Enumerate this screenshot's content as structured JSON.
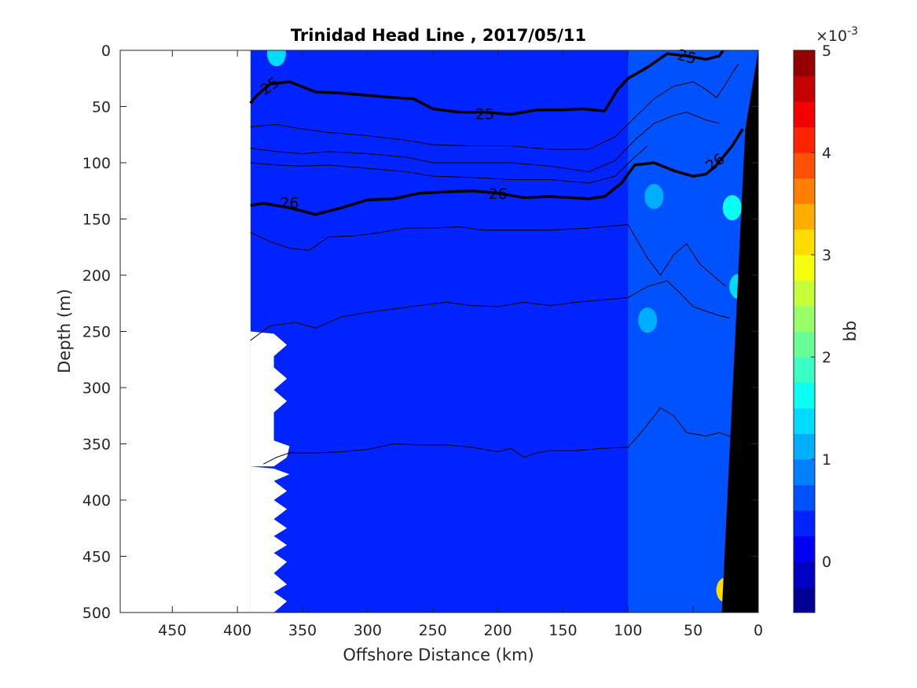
{
  "chart_data": {
    "type": "heatmap",
    "title": "Trinidad Head Line , 2017/05/11",
    "xlabel": "Offshore Distance (km)",
    "ylabel": "Depth (m)",
    "xlim": [
      490,
      0
    ],
    "ylim": [
      0,
      500
    ],
    "x_reversed": true,
    "y_reversed": true,
    "xticks": [
      450,
      400,
      350,
      300,
      250,
      200,
      150,
      100,
      50,
      0
    ],
    "yticks": [
      0,
      50,
      100,
      150,
      200,
      250,
      300,
      350,
      400,
      450,
      500
    ],
    "colorbar": {
      "label": "bb",
      "exponent_label": "×10",
      "exponent_power": "-3",
      "min": -0.5,
      "max": 5,
      "ticks": [
        0,
        1,
        2,
        3,
        4,
        5
      ],
      "colormap": "jet"
    },
    "field": {
      "background_value": 0.3,
      "nearshore_value": 0.7,
      "nearshore_x_start": 100,
      "features": [
        {
          "x": 370,
          "y": 3,
          "value": 1.4
        },
        {
          "x": 20,
          "y": 140,
          "value": 1.6
        },
        {
          "x": 15,
          "y": 210,
          "value": 1.3
        },
        {
          "x": 25,
          "y": 480,
          "value": 3.0
        },
        {
          "x": 80,
          "y": 130,
          "value": 1.0
        },
        {
          "x": 85,
          "y": 240,
          "value": 1.0
        }
      ]
    },
    "data_extent": {
      "x_max": 390,
      "bottom_depth_at_x_max": 250
    },
    "bathymetry": [
      {
        "x": 0,
        "depth": 0
      },
      {
        "x": 10,
        "depth": 70
      },
      {
        "x": 28,
        "depth": 500
      }
    ],
    "contours": [
      {
        "level": 25,
        "emphasized": true,
        "points": [
          [
            390,
            47
          ],
          [
            385,
            40
          ],
          [
            375,
            30
          ],
          [
            360,
            28
          ],
          [
            340,
            37
          ],
          [
            320,
            38
          ],
          [
            300,
            40
          ],
          [
            280,
            42
          ],
          [
            265,
            43
          ],
          [
            250,
            52
          ],
          [
            230,
            55
          ],
          [
            210,
            55
          ],
          [
            190,
            57
          ],
          [
            170,
            53
          ],
          [
            150,
            53
          ],
          [
            135,
            52
          ],
          [
            118,
            54
          ],
          [
            108,
            35
          ],
          [
            100,
            25
          ],
          [
            85,
            15
          ],
          [
            70,
            3
          ],
          [
            55,
            5
          ],
          [
            40,
            8
          ],
          [
            30,
            5
          ],
          [
            27,
            0
          ]
        ]
      },
      {
        "level": 26,
        "emphasized": true,
        "points": [
          [
            390,
            138
          ],
          [
            380,
            136
          ],
          [
            360,
            140
          ],
          [
            340,
            146
          ],
          [
            320,
            140
          ],
          [
            300,
            133
          ],
          [
            280,
            132
          ],
          [
            260,
            127
          ],
          [
            240,
            126
          ],
          [
            220,
            125
          ],
          [
            200,
            127
          ],
          [
            180,
            131
          ],
          [
            160,
            130
          ],
          [
            130,
            132
          ],
          [
            118,
            130
          ],
          [
            105,
            118
          ],
          [
            95,
            102
          ],
          [
            80,
            100
          ],
          [
            65,
            107
          ],
          [
            50,
            112
          ],
          [
            40,
            110
          ],
          [
            32,
            102
          ],
          [
            20,
            85
          ],
          [
            12,
            70
          ]
        ]
      },
      {
        "level": 25.2,
        "emphasized": false,
        "points": [
          [
            390,
            68
          ],
          [
            370,
            66
          ],
          [
            350,
            70
          ],
          [
            330,
            73
          ],
          [
            300,
            76
          ],
          [
            270,
            80
          ],
          [
            250,
            84
          ],
          [
            220,
            85
          ],
          [
            190,
            85
          ],
          [
            160,
            88
          ],
          [
            130,
            88
          ],
          [
            110,
            77
          ],
          [
            95,
            60
          ],
          [
            80,
            43
          ],
          [
            65,
            32
          ],
          [
            50,
            28
          ],
          [
            40,
            35
          ],
          [
            32,
            42
          ],
          [
            25,
            30
          ],
          [
            20,
            20
          ],
          [
            15,
            12
          ]
        ]
      },
      {
        "level": 25.4,
        "emphasized": false,
        "points": [
          [
            390,
            87
          ],
          [
            370,
            90
          ],
          [
            350,
            92
          ],
          [
            330,
            90
          ],
          [
            300,
            92
          ],
          [
            270,
            95
          ],
          [
            250,
            100
          ],
          [
            220,
            100
          ],
          [
            190,
            100
          ],
          [
            160,
            103
          ],
          [
            130,
            108
          ],
          [
            110,
            98
          ],
          [
            95,
            80
          ],
          [
            80,
            65
          ],
          [
            65,
            58
          ],
          [
            55,
            55
          ],
          [
            40,
            62
          ],
          [
            30,
            65
          ]
        ]
      },
      {
        "level": 25.6,
        "emphasized": false,
        "points": [
          [
            390,
            100
          ],
          [
            370,
            102
          ],
          [
            350,
            103
          ],
          [
            330,
            102
          ],
          [
            300,
            105
          ],
          [
            270,
            108
          ],
          [
            250,
            112
          ],
          [
            220,
            113
          ],
          [
            190,
            115
          ],
          [
            160,
            115
          ],
          [
            130,
            118
          ],
          [
            110,
            112
          ],
          [
            95,
            95
          ],
          [
            85,
            85
          ]
        ]
      },
      {
        "level": 26.2,
        "emphasized": false,
        "points": [
          [
            390,
            162
          ],
          [
            375,
            170
          ],
          [
            360,
            176
          ],
          [
            345,
            178
          ],
          [
            330,
            166
          ],
          [
            310,
            165
          ],
          [
            290,
            162
          ],
          [
            270,
            158
          ],
          [
            250,
            158
          ],
          [
            230,
            157
          ],
          [
            210,
            160
          ],
          [
            190,
            160
          ],
          [
            160,
            160
          ],
          [
            130,
            158
          ],
          [
            100,
            155
          ],
          [
            85,
            185
          ],
          [
            75,
            200
          ],
          [
            65,
            182
          ],
          [
            55,
            172
          ],
          [
            45,
            190
          ],
          [
            35,
            200
          ],
          [
            25,
            210
          ]
        ]
      },
      {
        "level": 26.4,
        "emphasized": false,
        "points": [
          [
            390,
            258
          ],
          [
            375,
            245
          ],
          [
            355,
            242
          ],
          [
            340,
            247
          ],
          [
            320,
            237
          ],
          [
            300,
            233
          ],
          [
            280,
            230
          ],
          [
            260,
            227
          ],
          [
            240,
            224
          ],
          [
            220,
            227
          ],
          [
            200,
            228
          ],
          [
            180,
            224
          ],
          [
            160,
            227
          ],
          [
            140,
            224
          ],
          [
            120,
            222
          ],
          [
            100,
            220
          ],
          [
            85,
            210
          ],
          [
            70,
            205
          ],
          [
            60,
            216
          ],
          [
            50,
            228
          ],
          [
            40,
            232
          ],
          [
            30,
            236
          ],
          [
            22,
            238
          ]
        ]
      },
      {
        "level": 26.6,
        "emphasized": false,
        "points": [
          [
            380,
            368
          ],
          [
            370,
            362
          ],
          [
            360,
            358
          ],
          [
            340,
            358
          ],
          [
            320,
            357
          ],
          [
            300,
            355
          ],
          [
            280,
            350
          ],
          [
            260,
            351
          ],
          [
            240,
            351
          ],
          [
            220,
            353
          ],
          [
            200,
            357
          ],
          [
            190,
            354
          ],
          [
            180,
            362
          ],
          [
            170,
            358
          ],
          [
            160,
            356
          ],
          [
            140,
            356
          ],
          [
            120,
            354
          ],
          [
            100,
            353
          ],
          [
            90,
            340
          ],
          [
            75,
            318
          ],
          [
            65,
            325
          ],
          [
            55,
            340
          ],
          [
            40,
            343
          ],
          [
            30,
            340
          ],
          [
            20,
            344
          ]
        ]
      }
    ],
    "contour_labels": [
      {
        "text": "25",
        "x": 375,
        "y": 32,
        "angle": -35
      },
      {
        "text": "25",
        "x": 210,
        "y": 57,
        "angle": 0
      },
      {
        "text": "25",
        "x": 55,
        "y": 6,
        "angle": 15
      },
      {
        "text": "26",
        "x": 360,
        "y": 136,
        "angle": 0
      },
      {
        "text": "26",
        "x": 200,
        "y": 128,
        "angle": 0
      },
      {
        "text": "26",
        "x": 33,
        "y": 100,
        "angle": -35
      }
    ],
    "gaps": [
      [
        [
          390,
          250
        ],
        [
          372,
          252
        ],
        [
          362,
          262
        ],
        [
          372,
          272
        ],
        [
          372,
          282
        ],
        [
          362,
          292
        ],
        [
          372,
          302
        ],
        [
          362,
          312
        ],
        [
          372,
          322
        ],
        [
          372,
          347
        ],
        [
          360,
          352
        ],
        [
          362,
          362
        ],
        [
          372,
          370
        ],
        [
          390,
          370
        ]
      ],
      [
        [
          390,
          370
        ],
        [
          372,
          372
        ],
        [
          360,
          377
        ],
        [
          372,
          383
        ],
        [
          362,
          392
        ],
        [
          372,
          400
        ],
        [
          362,
          408
        ],
        [
          372,
          417
        ],
        [
          362,
          425
        ],
        [
          372,
          432
        ],
        [
          362,
          440
        ],
        [
          372,
          447
        ],
        [
          362,
          455
        ],
        [
          372,
          465
        ],
        [
          362,
          475
        ],
        [
          372,
          482
        ],
        [
          362,
          490
        ],
        [
          372,
          500
        ],
        [
          390,
          500
        ]
      ]
    ]
  }
}
